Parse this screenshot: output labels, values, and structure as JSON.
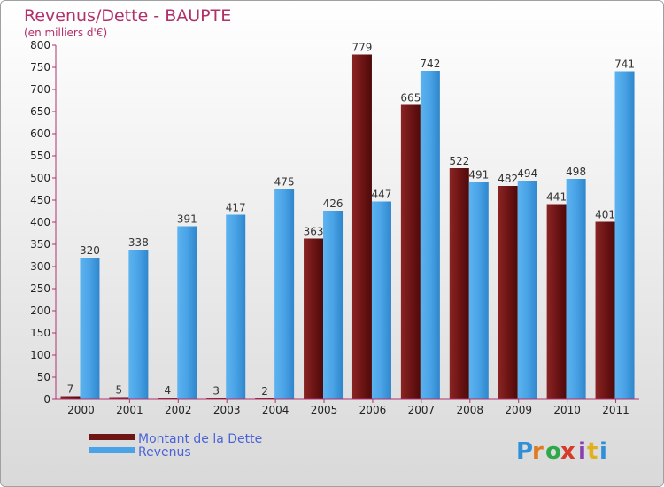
{
  "chart_data": {
    "type": "bar",
    "title": "Revenus/Dette - BAUPTE",
    "subtitle": "(en milliers d'€)",
    "categories": [
      "2000",
      "2001",
      "2002",
      "2003",
      "2004",
      "2005",
      "2006",
      "2007",
      "2008",
      "2009",
      "2010",
      "2011"
    ],
    "series": [
      {
        "name": "Montant de la Dette",
        "color": "#7a1a1a",
        "values": [
          7,
          5,
          4,
          3,
          2,
          363,
          779,
          665,
          522,
          482,
          441,
          401
        ]
      },
      {
        "name": "Revenus",
        "color": "#4aa3e6",
        "values": [
          320,
          338,
          391,
          417,
          475,
          426,
          447,
          742,
          491,
          494,
          498,
          741
        ]
      }
    ],
    "ylim": [
      0,
      800
    ],
    "yticks": [
      0,
      50,
      100,
      150,
      200,
      250,
      300,
      350,
      400,
      450,
      500,
      550,
      600,
      650,
      700,
      750,
      800
    ],
    "grid": false,
    "legend": "bottom-left"
  },
  "brand": {
    "letters": [
      "P",
      "r",
      "o",
      "x",
      "i",
      "t",
      "i"
    ],
    "colors": [
      "#2f8fd8",
      "#e07a1f",
      "#2fa84a",
      "#d63a2a",
      "#8a3fb0",
      "#e0b01f",
      "#2f8fd8"
    ]
  }
}
